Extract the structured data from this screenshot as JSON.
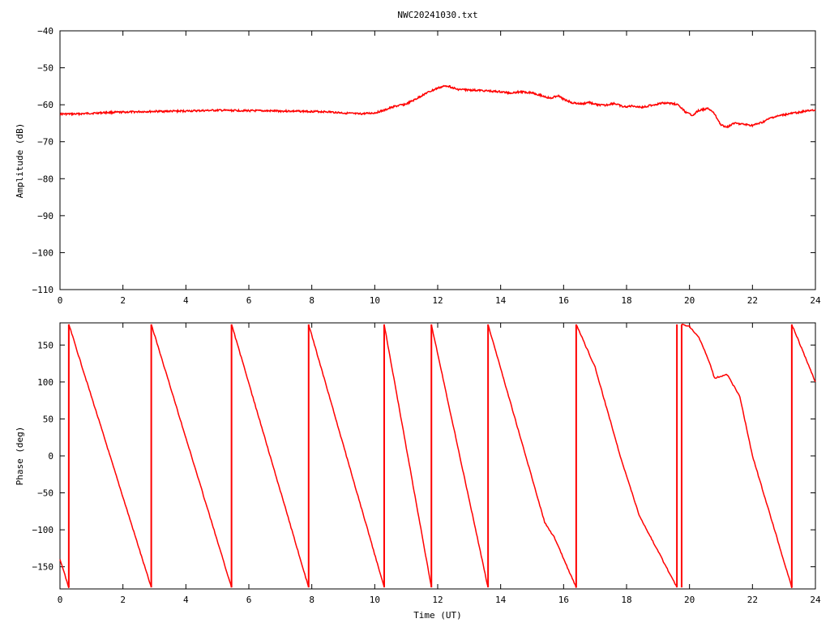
{
  "chart_data": [
    {
      "type": "line",
      "title": "NWC20241030.txt",
      "xlabel": "",
      "ylabel": "Amplitude (dB)",
      "xlim": [
        0,
        24
      ],
      "ylim": [
        -110,
        -40
      ],
      "xticks": [
        "0",
        "2",
        "4",
        "6",
        "8",
        "10",
        "12",
        "14",
        "16",
        "18",
        "20",
        "22",
        "24"
      ],
      "yticks": [
        "−110",
        "−100",
        "−90",
        "−80",
        "−70",
        "−60",
        "−50",
        "−40"
      ],
      "grid": false,
      "color": "#ff0000",
      "series": [
        {
          "x": [
            0,
            0.5,
            1,
            1.5,
            2,
            3,
            4,
            5,
            6,
            7,
            8,
            8.5,
            9,
            9.5,
            10,
            10.3,
            10.6,
            11,
            11.3,
            11.6,
            12,
            12.3,
            12.6,
            13,
            13.5,
            14,
            14.3,
            14.6,
            15,
            15.4,
            15.6,
            15.8,
            16,
            16.3,
            16.6,
            16.8,
            17,
            17.3,
            17.6,
            17.9,
            18.2,
            18.5,
            18.8,
            19.2,
            19.6,
            19.9,
            20.1,
            20.3,
            20.6,
            20.8,
            21,
            21.2,
            21.4,
            21.7,
            22,
            22.3,
            22.6,
            23,
            23.5,
            24
          ],
          "y": [
            -62.5,
            -62.5,
            -62.3,
            -62.1,
            -62,
            -61.8,
            -61.7,
            -61.5,
            -61.6,
            -61.7,
            -61.8,
            -61.9,
            -62.2,
            -62.5,
            -62.2,
            -61.5,
            -60.5,
            -59.8,
            -58.5,
            -57,
            -55.5,
            -54.8,
            -55.8,
            -56,
            -56.2,
            -56.5,
            -56.8,
            -56.5,
            -56.7,
            -57.8,
            -58.3,
            -57.5,
            -58.5,
            -59.5,
            -59.8,
            -59.3,
            -59.9,
            -60.2,
            -59.6,
            -60.6,
            -60.3,
            -60.7,
            -60.1,
            -59.5,
            -59.8,
            -62.2,
            -62.8,
            -61.5,
            -61,
            -62.5,
            -65.5,
            -66,
            -65,
            -65.3,
            -65.6,
            -64.8,
            -63.5,
            -62.7,
            -62,
            -61.3
          ]
        }
      ]
    },
    {
      "type": "line",
      "title": "",
      "xlabel": "Time (UT)",
      "ylabel": "Phase (deg)",
      "xlim": [
        0,
        24
      ],
      "ylim": [
        -180,
        180
      ],
      "xticks": [
        "0",
        "2",
        "4",
        "6",
        "8",
        "10",
        "12",
        "14",
        "16",
        "18",
        "20",
        "22",
        "24"
      ],
      "yticks": [
        "−150",
        "−100",
        "−50",
        "0",
        "50",
        "100",
        "150"
      ],
      "grid": false,
      "color": "#ff0000",
      "segments": [
        {
          "x": [
            0,
            0.28
          ],
          "y": [
            -140,
            -178
          ]
        },
        {
          "x": [
            0.28,
            2.9
          ],
          "y": [
            178,
            -178
          ]
        },
        {
          "x": [
            2.9,
            5.45
          ],
          "y": [
            178,
            -178
          ]
        },
        {
          "x": [
            5.45,
            7.9
          ],
          "y": [
            178,
            -178
          ]
        },
        {
          "x": [
            7.9,
            10.3
          ],
          "y": [
            178,
            -178
          ]
        },
        {
          "x": [
            10.3,
            11.8
          ],
          "y": [
            178,
            -178
          ]
        },
        {
          "x": [
            11.8,
            13.6
          ],
          "y": [
            178,
            -178
          ]
        },
        {
          "x": [
            13.6,
            15.4,
            15.7,
            16.4
          ],
          "y": [
            178,
            -90,
            -110,
            -178
          ]
        },
        {
          "x": [
            16.4,
            17,
            17.8,
            18.4,
            19.6
          ],
          "y": [
            178,
            120,
            0,
            -80,
            -178
          ]
        },
        {
          "x": [
            19.75,
            20,
            20.3,
            20.6,
            20.8,
            21,
            21.2,
            21.6,
            22,
            23.25
          ],
          "y": [
            178,
            175,
            160,
            130,
            105,
            108,
            110,
            80,
            0,
            -178
          ]
        },
        {
          "x": [
            23.25,
            24
          ],
          "y": [
            178,
            100
          ]
        }
      ],
      "wraps": [
        0.28,
        2.9,
        5.45,
        7.9,
        10.3,
        11.8,
        13.6,
        16.4,
        19.6,
        19.75,
        23.25
      ]
    }
  ]
}
